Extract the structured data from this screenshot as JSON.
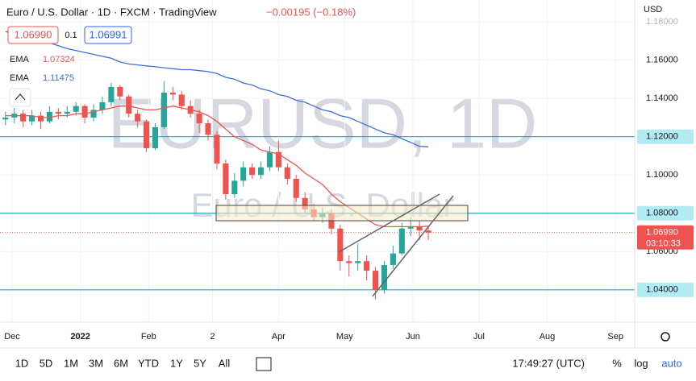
{
  "chart_data": {
    "type": "candlestick",
    "title": "Euro / U.S. Dollar · 1D · FXCM · TradingView",
    "change": "−0.00195 (−0.18%)",
    "currency": "USD",
    "watermark": "EURUSD, 1D",
    "watermark_sub": "Euro / U.S. Dollar",
    "x": [
      -3,
      1,
      5,
      9,
      13,
      17,
      21,
      25,
      29,
      33,
      37,
      41,
      45,
      49,
      53,
      57,
      61,
      65,
      69,
      73,
      77,
      81,
      85,
      89,
      93,
      97,
      101,
      105,
      109,
      113,
      117,
      121,
      125,
      129,
      133,
      137,
      141,
      145,
      149,
      153,
      157,
      161,
      165,
      169,
      173,
      177,
      181,
      185,
      189
    ],
    "ohlc": [
      [
        1.129,
        1.133,
        1.126,
        1.13
      ],
      [
        1.13,
        1.135,
        1.127,
        1.132
      ],
      [
        1.132,
        1.134,
        1.125,
        1.128
      ],
      [
        1.128,
        1.134,
        1.126,
        1.131
      ],
      [
        1.131,
        1.133,
        1.124,
        1.128
      ],
      [
        1.128,
        1.136,
        1.127,
        1.133
      ],
      [
        1.133,
        1.135,
        1.129,
        1.132
      ],
      [
        1.132,
        1.136,
        1.13,
        1.133
      ],
      [
        1.133,
        1.138,
        1.131,
        1.136
      ],
      [
        1.136,
        1.137,
        1.127,
        1.13
      ],
      [
        1.13,
        1.137,
        1.128,
        1.134
      ],
      [
        1.134,
        1.141,
        1.132,
        1.138
      ],
      [
        1.138,
        1.148,
        1.136,
        1.146
      ],
      [
        1.146,
        1.147,
        1.139,
        1.141
      ],
      [
        1.141,
        1.142,
        1.13,
        1.132
      ],
      [
        1.132,
        1.134,
        1.125,
        1.128
      ],
      [
        1.128,
        1.129,
        1.112,
        1.114
      ],
      [
        1.114,
        1.127,
        1.113,
        1.125
      ],
      [
        1.125,
        1.149,
        1.124,
        1.143
      ],
      [
        1.143,
        1.146,
        1.139,
        1.142
      ],
      [
        1.142,
        1.144,
        1.134,
        1.136
      ],
      [
        1.136,
        1.139,
        1.13,
        1.132
      ],
      [
        1.132,
        1.134,
        1.122,
        1.127
      ],
      [
        1.127,
        1.129,
        1.118,
        1.121
      ],
      [
        1.121,
        1.123,
        1.103,
        1.106
      ],
      [
        1.106,
        1.108,
        1.087,
        1.09
      ],
      [
        1.09,
        1.101,
        1.088,
        1.097
      ],
      [
        1.097,
        1.107,
        1.094,
        1.104
      ],
      [
        1.104,
        1.106,
        1.098,
        1.1
      ],
      [
        1.1,
        1.107,
        1.098,
        1.104
      ],
      [
        1.104,
        1.115,
        1.102,
        1.112
      ],
      [
        1.112,
        1.118,
        1.102,
        1.104
      ],
      [
        1.104,
        1.106,
        1.095,
        1.098
      ],
      [
        1.098,
        1.1,
        1.086,
        1.088
      ],
      [
        1.088,
        1.091,
        1.08,
        1.082
      ],
      [
        1.082,
        1.085,
        1.076,
        1.078
      ],
      [
        1.078,
        1.083,
        1.075,
        1.08
      ],
      [
        1.08,
        1.082,
        1.069,
        1.072
      ],
      [
        1.072,
        1.074,
        1.05,
        1.055
      ],
      [
        1.055,
        1.058,
        1.047,
        1.054
      ],
      [
        1.054,
        1.064,
        1.05,
        1.055
      ],
      [
        1.055,
        1.058,
        1.045,
        1.05
      ],
      [
        1.05,
        1.052,
        1.035,
        1.04
      ],
      [
        1.04,
        1.055,
        1.038,
        1.053
      ],
      [
        1.053,
        1.063,
        1.051,
        1.059
      ],
      [
        1.059,
        1.075,
        1.058,
        1.072
      ],
      [
        1.072,
        1.078,
        1.068,
        1.073
      ],
      [
        1.073,
        1.076,
        1.066,
        1.071
      ],
      [
        1.071,
        1.073,
        1.066,
        1.0699
      ]
    ],
    "up_color": "#26a69a",
    "down_color": "#ef5350",
    "series": [
      {
        "name": "EMA",
        "color": "#f05350",
        "values": [
          1.131,
          1.131,
          1.131,
          1.131,
          1.13,
          1.13,
          1.131,
          1.131,
          1.132,
          1.132,
          1.133,
          1.134,
          1.135,
          1.136,
          1.136,
          1.135,
          1.134,
          1.134,
          1.135,
          1.136,
          1.135,
          1.134,
          1.133,
          1.131,
          1.128,
          1.124,
          1.12,
          1.118,
          1.116,
          1.113,
          1.112,
          1.111,
          1.108,
          1.105,
          1.101,
          1.098,
          1.095,
          1.09,
          1.086,
          1.083,
          1.08,
          1.077,
          1.074,
          1.073,
          1.073,
          1.073,
          1.073,
          1.073,
          1.07324
        ]
      },
      {
        "name": "EMA",
        "color": "#3f6fd6",
        "values": [
          1.175,
          1.1735,
          1.172,
          1.171,
          1.17,
          1.169,
          1.1675,
          1.166,
          1.165,
          1.164,
          1.163,
          1.162,
          1.161,
          1.159,
          1.158,
          1.1575,
          1.157,
          1.1565,
          1.156,
          1.1555,
          1.155,
          1.155,
          1.1545,
          1.154,
          1.153,
          1.151,
          1.15,
          1.148,
          1.147,
          1.145,
          1.144,
          1.142,
          1.141,
          1.139,
          1.138,
          1.136,
          1.134,
          1.133,
          1.131,
          1.13,
          1.128,
          1.126,
          1.124,
          1.122,
          1.121,
          1.119,
          1.117,
          1.115,
          1.11475
        ]
      }
    ],
    "xlim": [
      -5.5,
      282
    ],
    "xticks": [
      {
        "value": 0,
        "label": "Dec"
      },
      {
        "value": 31,
        "label": "2022"
      },
      {
        "value": 62,
        "label": "Feb"
      },
      {
        "value": 91,
        "label": "2"
      },
      {
        "value": 121,
        "label": "Apr"
      },
      {
        "value": 151,
        "label": "May"
      },
      {
        "value": 182,
        "label": "Jun"
      },
      {
        "value": 212,
        "label": "Jul"
      },
      {
        "value": 243,
        "label": "Aug"
      },
      {
        "value": 274,
        "label": "Sep"
      }
    ],
    "ylim": [
      1.0231,
      1.1914
    ],
    "yticks": [
      {
        "value": 1.18,
        "label": "1.18000"
      },
      {
        "value": 1.16,
        "label": "1.16000"
      },
      {
        "value": 1.14,
        "label": "1.14000"
      },
      {
        "value": 1.1,
        "label": "1.10000"
      },
      {
        "value": 1.06,
        "label": "1.06000"
      }
    ],
    "levels": [
      {
        "value": 1.12,
        "label": "1.12000"
      },
      {
        "value": 1.08,
        "label": "1.08000"
      },
      {
        "value": 1.04,
        "label": "1.04000"
      }
    ],
    "level_color": "#1fa9b8",
    "price_line": {
      "value": 1.0699,
      "label": "1.06990",
      "countdown": "03:10:33"
    },
    "quote": {
      "bid": "1.06990",
      "spread": "0.1",
      "ask": "1.06991"
    }
  },
  "toolbar": {
    "ranges": [
      "1D",
      "5D",
      "1M",
      "3M",
      "6M",
      "YTD",
      "1Y",
      "5Y",
      "All"
    ],
    "clock": "17:49:27 (UTC)",
    "percent": "%",
    "log": "log",
    "auto": "auto"
  }
}
